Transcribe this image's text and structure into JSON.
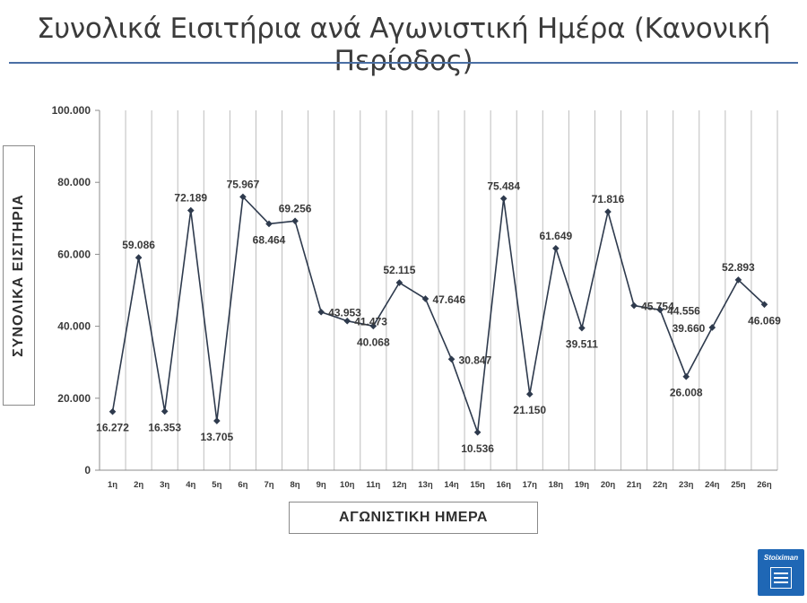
{
  "chart_data": {
    "type": "line",
    "title": "Συνολικά Εισιτήρια ανά Αγωνιστική Ημέρα (Κανονική Περίοδος)",
    "xlabel": "ΑΓΩΝΙΣΤΙΚΗ ΗΜΕΡΑ",
    "ylabel": "ΣΥΝΟΛΙΚΑ ΕΙΣΙΤΗΡΙΑ",
    "ylim": [
      0,
      100000
    ],
    "y_ticks": [
      "0",
      "20.000",
      "40.000",
      "60.000",
      "80.000",
      "100.000"
    ],
    "grid": "vertical",
    "legend": "none",
    "categories": [
      "1η",
      "2η",
      "3η",
      "4η",
      "5η",
      "6η",
      "7η",
      "8η",
      "9η",
      "10η",
      "11η",
      "12η",
      "13η",
      "14η",
      "15η",
      "16η",
      "17η",
      "18η",
      "19η",
      "20η",
      "21η",
      "22η",
      "23η",
      "24η",
      "25η",
      "26η"
    ],
    "series": [
      {
        "values": [
          16272,
          59086,
          16353,
          72189,
          13705,
          75967,
          68464,
          69256,
          43953,
          41473,
          40068,
          52115,
          47646,
          30847,
          10536,
          75484,
          21150,
          61649,
          39511,
          71816,
          45754,
          44556,
          26008,
          39660,
          52893,
          46069
        ],
        "labels": [
          "16.272",
          "59.086",
          "16.353",
          "72.189",
          "13.705",
          "75.967",
          "68.464",
          "69.256",
          "43.953",
          "41.473",
          "40.068",
          "52.115",
          "47.646",
          "30.847",
          "10.536",
          "75.484",
          "21.150",
          "61.649",
          "39.511",
          "71.816",
          "45.754",
          "44.556",
          "26.008",
          "39.660",
          "52.893",
          "46.069"
        ],
        "color": "#2e3a4d"
      }
    ]
  },
  "brand": {
    "logo_text": "Stoiximan",
    "color": "#1f67b5"
  }
}
